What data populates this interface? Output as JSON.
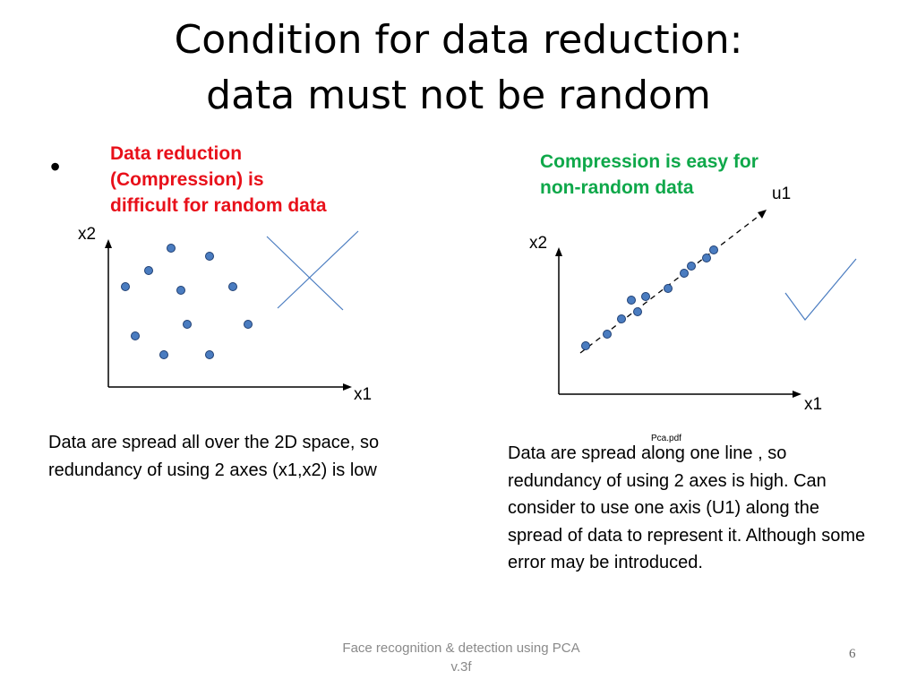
{
  "slide": {
    "title_line1": "Condition for data reduction:",
    "title_line2": "data must not be random",
    "bullet": "•",
    "red_note": "Data reduction (Compression) is difficult for random data",
    "green_note": "Compression is easy for non-random data",
    "left_desc": "Data are spread all over the 2D space, so redundancy of using 2 axes (x1,x2) is low",
    "right_desc": "Data are spread along one line , so redundancy of using 2 axes is high. Can consider to use one axis (U1) along the spread of data to represent it. Although some error may be introduced.",
    "source_label": "Pca.pdf",
    "footer_line1": "Face recognition & detection using PCA",
    "footer_line2": "v.3f",
    "page_number": "6"
  },
  "left_plot": {
    "x_axis_label": "x1",
    "y_axis_label": "x2",
    "mark": "cross"
  },
  "right_plot": {
    "x_axis_label": "x1",
    "y_axis_label": "x2",
    "principal_axis_label": "u1",
    "mark": "checkmark"
  },
  "colors": {
    "point_fill": "#4a7cc0",
    "point_stroke": "#1f3f73",
    "mark_line": "#4a7cc0",
    "red_text": "#e8101a",
    "green_text": "#0fa84a"
  }
}
